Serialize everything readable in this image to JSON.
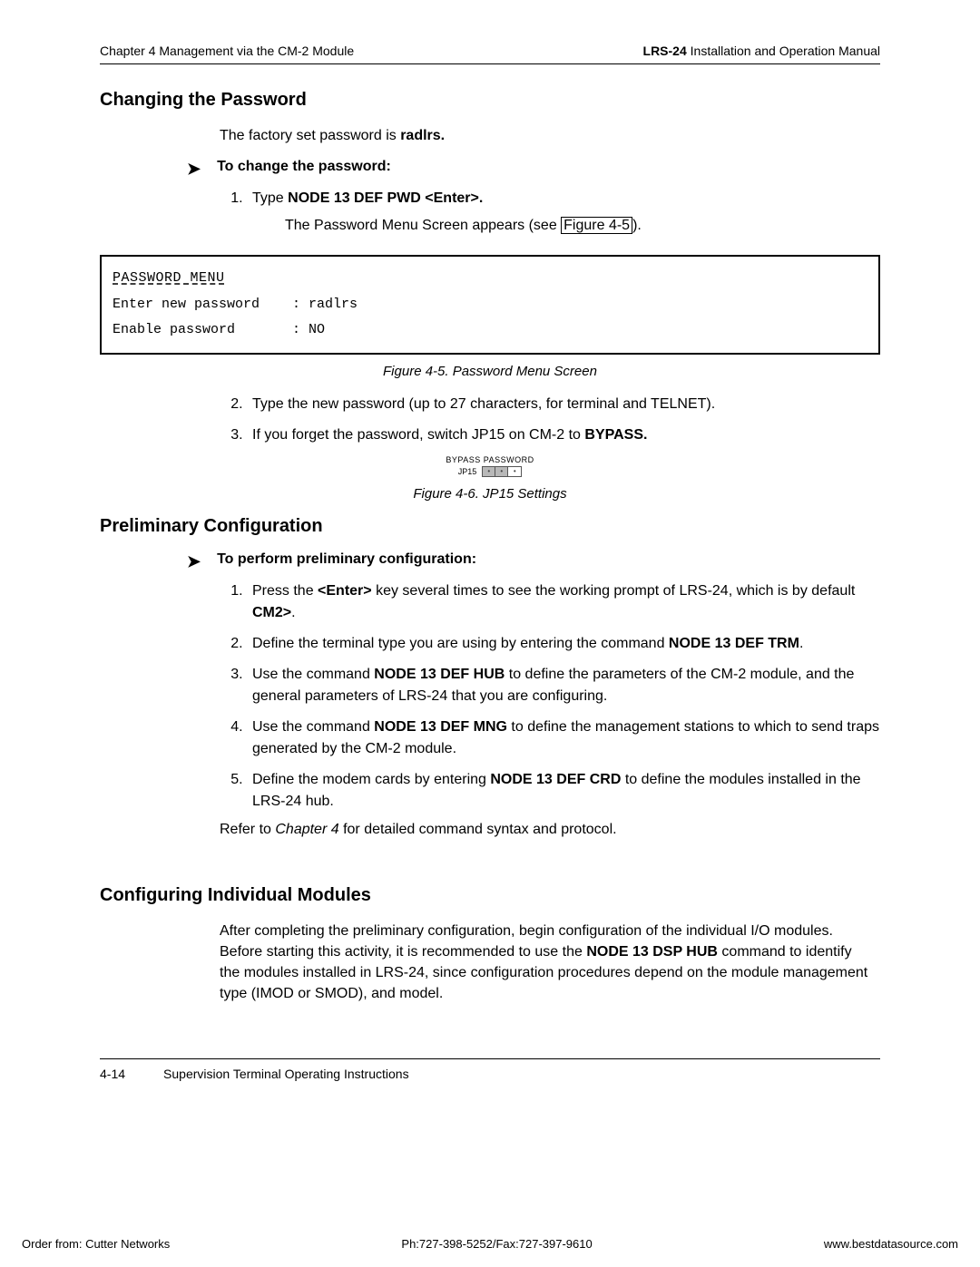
{
  "header": {
    "left": "Chapter 4  Management via the CM-2 Module",
    "right_bold": "LRS-24",
    "right_rest": " Installation and Operation Manual"
  },
  "sec1": {
    "title": "Changing the Password",
    "intro_pre": "The factory set password is ",
    "intro_bold": "radlrs.",
    "proc_label": "To change the password:",
    "step1_pre": "Type ",
    "step1_bold": "NODE 13 DEF PWD <Enter>.",
    "step1_sub_pre": "The Password Menu Screen appears (see ",
    "step1_sub_link": "Figure 4-5",
    "step1_sub_post": ").",
    "step2": "Type the new password (up to 27 characters, for terminal and TELNET).",
    "step3_pre": "If you forget the password, switch JP15 on CM-2 to ",
    "step3_bold": "BYPASS."
  },
  "password_box": {
    "title": "PASSWORD MENU",
    "row1": "Enter new password    : radlrs",
    "row2": "Enable password       : NO"
  },
  "fig45_caption": "Figure 4-5.  Password Menu Screen",
  "jumper": {
    "top_label": "BYPASS  PASSWORD",
    "jp_label": "JP15"
  },
  "fig46_caption": "Figure 4-6.  JP15 Settings",
  "sec2": {
    "title": "Preliminary Configuration",
    "proc_label": "To perform preliminary configuration:",
    "s1_pre": "Press the ",
    "s1_b1": "<Enter>",
    "s1_mid": " key several times to see the working prompt of LRS-24, which is by default ",
    "s1_b2": "CM2>",
    "s1_post": ".",
    "s2_pre": "Define the terminal type you are using by entering the command ",
    "s2_b": "NODE 13 DEF TRM",
    "s2_post": ".",
    "s3_pre": "Use the command ",
    "s3_b": "NODE 13 DEF HUB",
    "s3_post": " to define the parameters of the CM-2 module, and the general parameters of LRS-24 that you are configuring.",
    "s4_pre": "Use the command ",
    "s4_b": "NODE 13 DEF MNG",
    "s4_post": " to define the management stations to which to send traps generated by the CM-2 module.",
    "s5_pre": "Define the modem cards by entering ",
    "s5_b": "NODE 13 DEF CRD",
    "s5_post": " to define the modules installed in the LRS-24 hub.",
    "refer_pre": "Refer to ",
    "refer_it": "Chapter 4",
    "refer_post": " for detailed command syntax and protocol."
  },
  "sec3": {
    "title": "Configuring Individual Modules",
    "p_pre": "After completing the preliminary configuration, begin configuration of the individual I/O modules. Before starting this activity, it is recommended to use the ",
    "p_b": "NODE 13 DSP HUB",
    "p_post": " command to identify the modules installed in LRS-24, since configuration procedures depend on the module management type (IMOD or SMOD), and model."
  },
  "footer": {
    "pagenum": "4-14",
    "title": "Supervision Terminal Operating Instructions"
  },
  "bottom": {
    "left": "Order from: Cutter Networks",
    "center": "Ph:727-398-5252/Fax:727-397-9610",
    "right": "www.bestdatasource.com"
  }
}
